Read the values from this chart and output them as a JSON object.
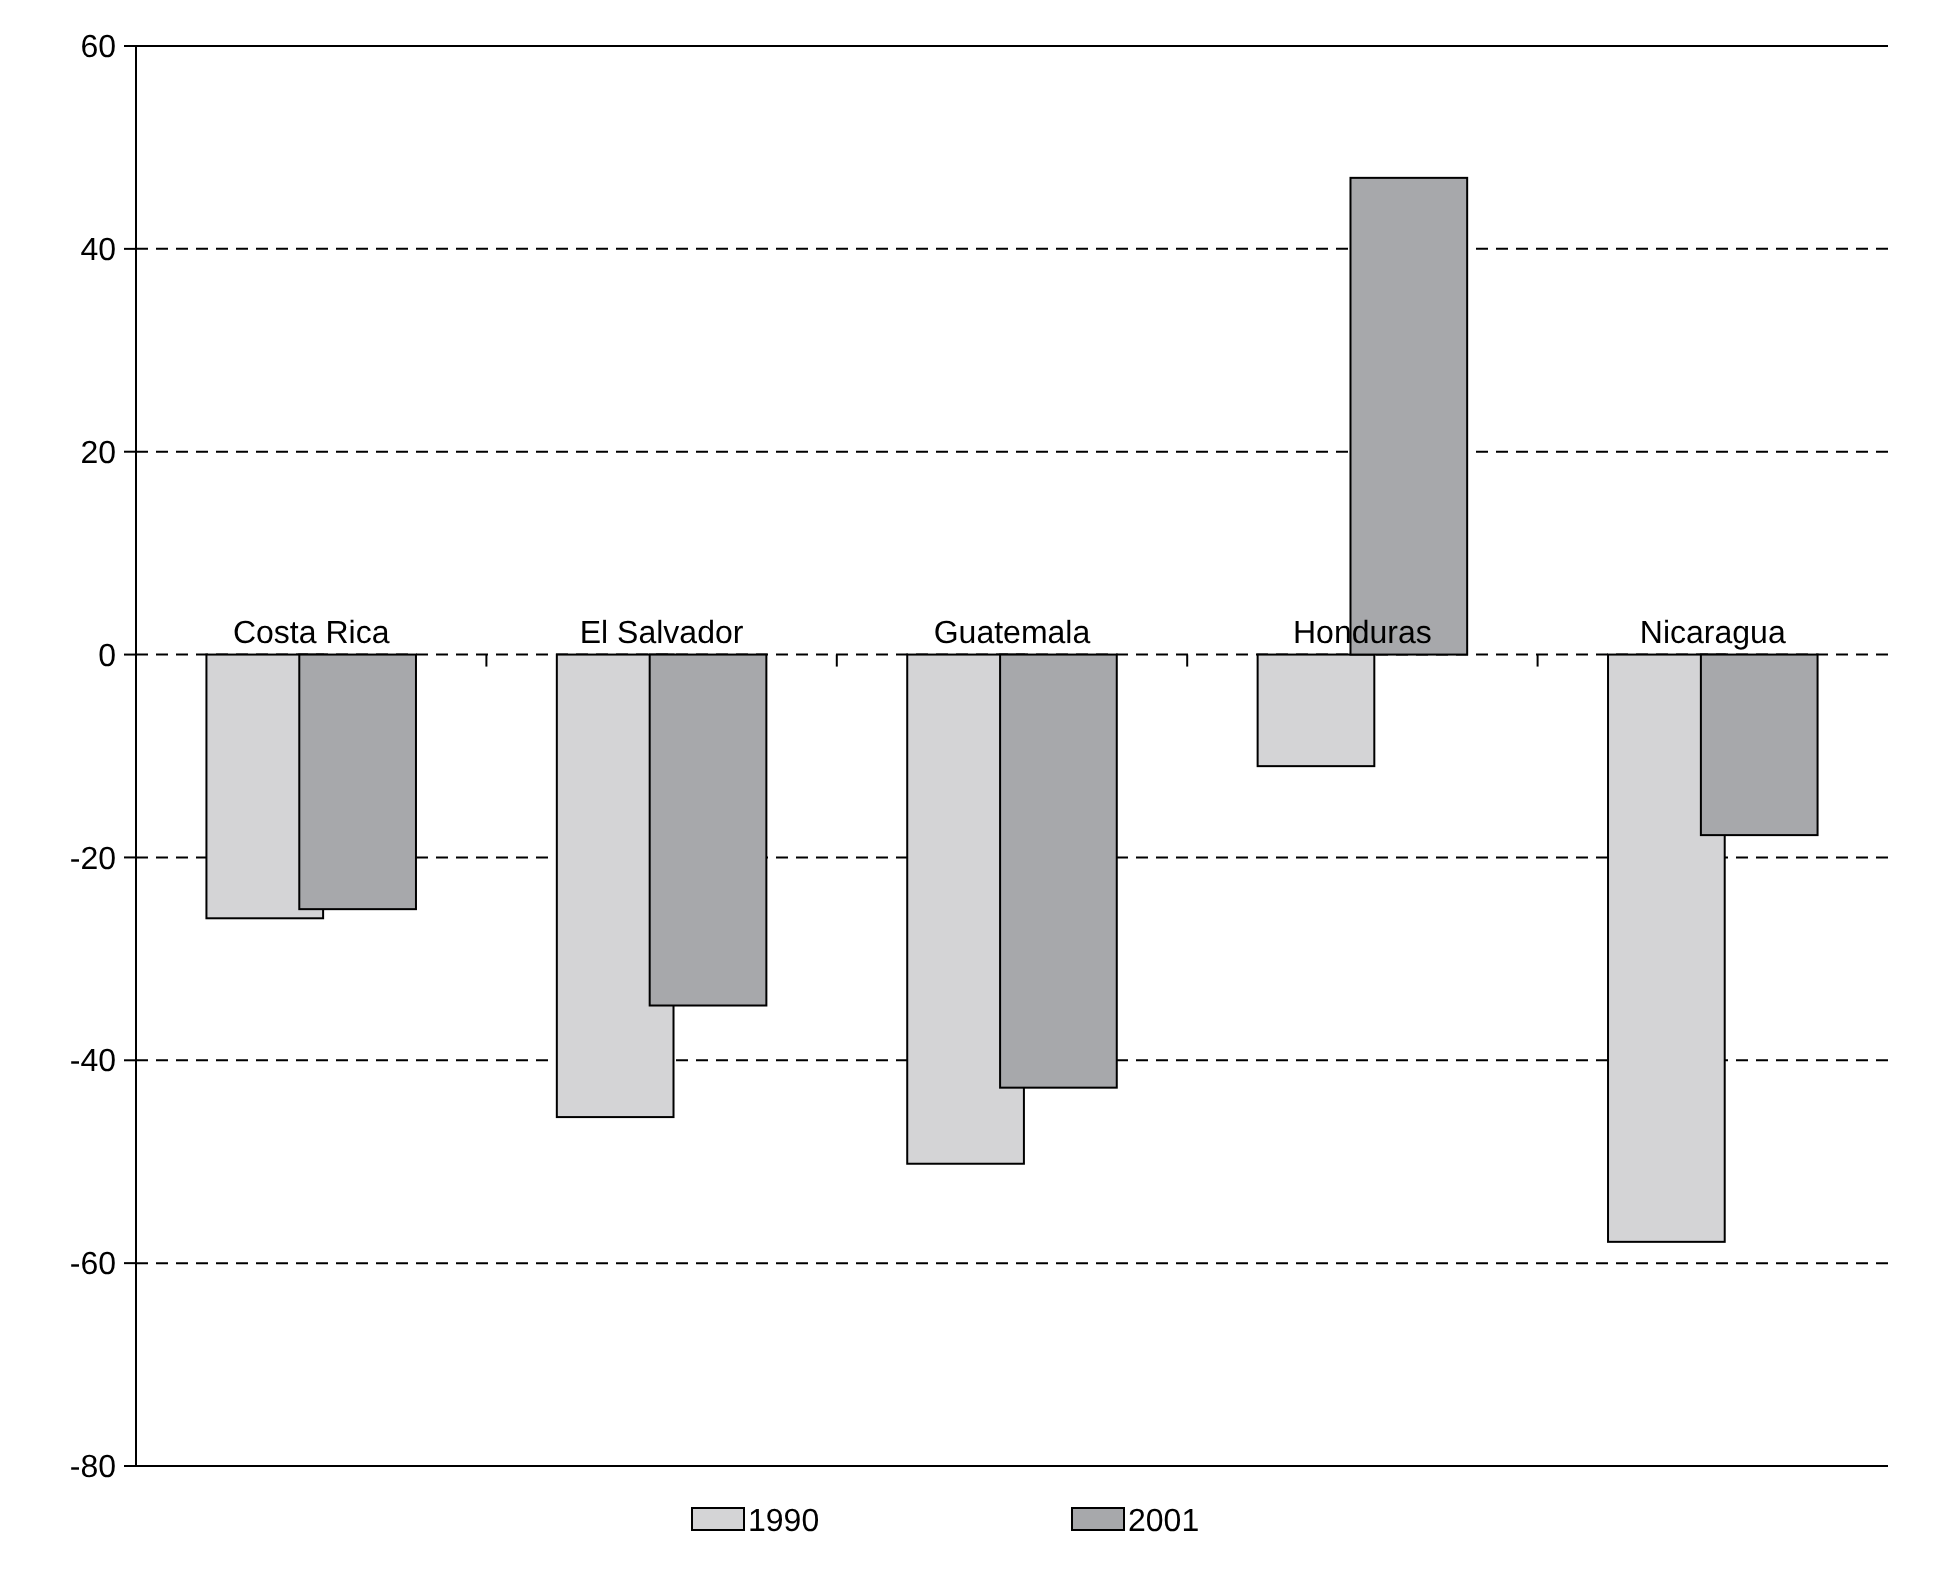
{
  "chart_data": {
    "type": "bar",
    "categories": [
      "Costa Rica",
      "El Salvador",
      "Guatemala",
      "Honduras",
      "Nicaragua"
    ],
    "series": [
      {
        "name": "1990",
        "color": "#d4d4d6",
        "values": [
          -26,
          -45.6,
          -50.2,
          -11,
          -57.9
        ]
      },
      {
        "name": "2001",
        "color": "#a7a8ab",
        "values": [
          -25.1,
          -34.6,
          -42.7,
          47,
          -17.8
        ]
      }
    ],
    "ylim": [
      -80,
      60
    ],
    "yticks": [
      -80,
      -60,
      -40,
      -20,
      0,
      20,
      40,
      60
    ],
    "grid": "y",
    "line_style": "dashed",
    "legend": "bottom"
  }
}
